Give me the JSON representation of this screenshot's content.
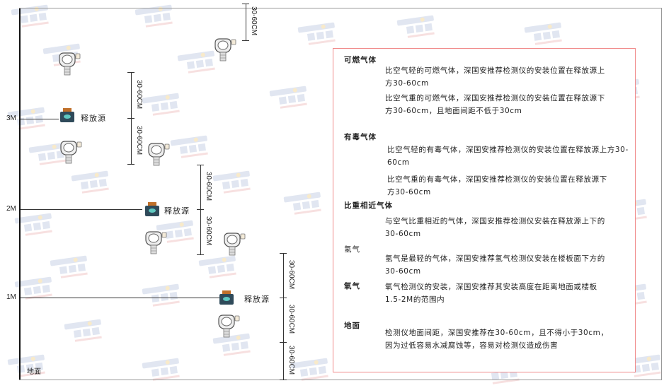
{
  "watermark": {
    "brand": "SINGOAN",
    "cn": "深国安"
  },
  "levels": [
    "3M",
    "2M",
    "1M"
  ],
  "floor_label": "地面",
  "source_label": "释放源",
  "dimension_label": "30-60CM",
  "colors": {
    "box_border": "#f08a8a",
    "source_body": "#2f4a5a",
    "source_cap": "#c0702a",
    "watermark": "#c9d3e6"
  },
  "legend": {
    "combustible": {
      "title": "可燃气体",
      "lighter": "比空气轻的可燃气体，深国安推荐检测仪的安装位置在释放源上方30-60cm",
      "heavier": "比空气重的可燃气体，深国安推荐检测仪的安装位置在释放源下方30-60cm，且地面间距不低于30cm"
    },
    "toxic": {
      "title": "有毒气体",
      "lighter": "比空气轻的有毒气体，深国安推荐检测仪的安装位置在释放源上方30-60cm",
      "heavier": "比空气重的有毒气体，深国安推荐检测仪的安装位置在释放源下方30-60cm"
    },
    "similar": {
      "title": "比重相近气体",
      "text": "与空气比重相近的气体，深国安推荐检测仪安装在释放源上下的30-60cm"
    },
    "hydrogen": {
      "title": "氢气",
      "text": "氢气是最轻的气体，深国安推荐氢气检测仪安装在楼板面下方的30-60cm"
    },
    "oxygen": {
      "title": "氧气",
      "text": "氧气检测仪的安装，深国安推荐其安装高度在距离地面或楼板1.5-2M的范围内"
    },
    "ground": {
      "title": "地面",
      "text": "检测仪地面间距，深国安推荐在30-60cm，且不得小于30cm，因为过低容易水减腐蚀等，容易对检测仪造成伤害"
    }
  }
}
